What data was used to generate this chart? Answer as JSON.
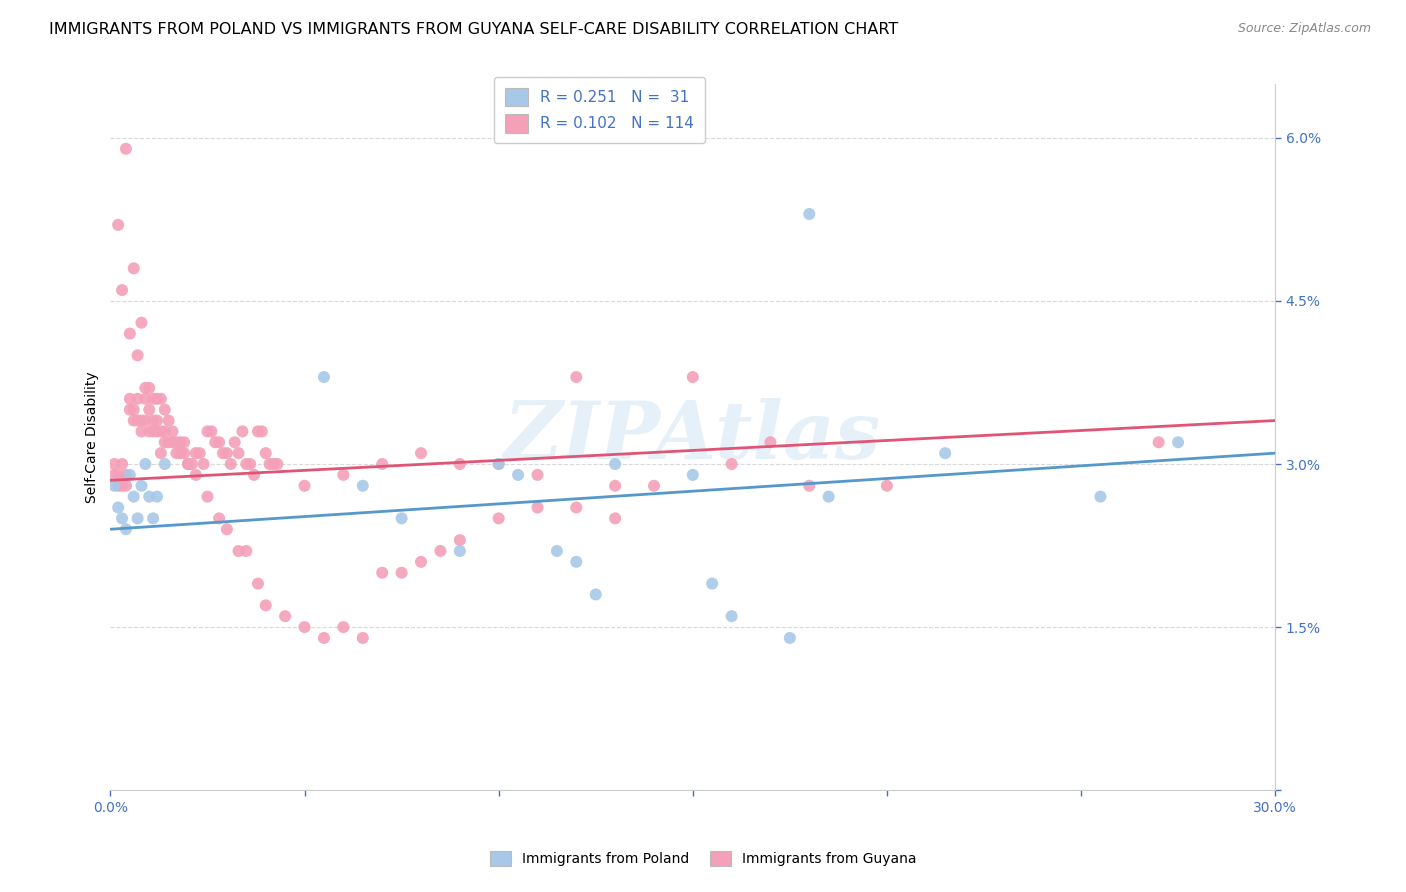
{
  "title": "IMMIGRANTS FROM POLAND VS IMMIGRANTS FROM GUYANA SELF-CARE DISABILITY CORRELATION CHART",
  "source": "Source: ZipAtlas.com",
  "ylabel": "Self-Care Disability",
  "watermark": "ZIPAtlas",
  "legend_poland_R": "R = 0.251",
  "legend_poland_N": "N =  31",
  "legend_guyana_R": "R = 0.102",
  "legend_guyana_N": "N = 114",
  "xlim": [
    0.0,
    0.3
  ],
  "ylim": [
    0.0,
    0.065
  ],
  "yticks": [
    0.0,
    0.015,
    0.03,
    0.045,
    0.06
  ],
  "ytick_labels": [
    "",
    "1.5%",
    "3.0%",
    "4.5%",
    "6.0%"
  ],
  "xticks": [
    0.0,
    0.05,
    0.1,
    0.15,
    0.2,
    0.25,
    0.3
  ],
  "xtick_labels": [
    "0.0%",
    "",
    "",
    "",
    "",
    "",
    "30.0%"
  ],
  "color_poland": "#a8c8e8",
  "color_guyana": "#f4a0b8",
  "color_trend_poland": "#5599cc",
  "color_trend_guyana": "#e05575",
  "background_color": "#ffffff",
  "grid_color": "#d0d0d0",
  "axis_color": "#4472c4",
  "title_fontsize": 11.5,
  "axis_label_fontsize": 10,
  "tick_fontsize": 10,
  "legend_fontsize": 11,
  "poland_x": [
    0.001,
    0.002,
    0.003,
    0.004,
    0.005,
    0.006,
    0.007,
    0.008,
    0.009,
    0.01,
    0.011,
    0.012,
    0.014,
    0.055,
    0.065,
    0.075,
    0.09,
    0.1,
    0.105,
    0.115,
    0.12,
    0.125,
    0.13,
    0.15,
    0.155,
    0.16,
    0.175,
    0.185,
    0.215,
    0.255,
    0.275
  ],
  "poland_y": [
    0.028,
    0.026,
    0.025,
    0.024,
    0.029,
    0.027,
    0.025,
    0.028,
    0.03,
    0.027,
    0.025,
    0.027,
    0.03,
    0.038,
    0.028,
    0.025,
    0.022,
    0.03,
    0.029,
    0.022,
    0.021,
    0.018,
    0.03,
    0.029,
    0.019,
    0.016,
    0.014,
    0.027,
    0.031,
    0.027,
    0.032
  ],
  "guyana_x": [
    0.004,
    0.006,
    0.008,
    0.01,
    0.012,
    0.014,
    0.002,
    0.003,
    0.005,
    0.007,
    0.009,
    0.011,
    0.013,
    0.015,
    0.016,
    0.017,
    0.018,
    0.019,
    0.02,
    0.021,
    0.022,
    0.023,
    0.024,
    0.025,
    0.026,
    0.027,
    0.028,
    0.029,
    0.03,
    0.031,
    0.032,
    0.033,
    0.034,
    0.035,
    0.036,
    0.037,
    0.038,
    0.039,
    0.04,
    0.041,
    0.042,
    0.043,
    0.001,
    0.001,
    0.002,
    0.002,
    0.003,
    0.003,
    0.004,
    0.004,
    0.005,
    0.005,
    0.006,
    0.006,
    0.007,
    0.007,
    0.008,
    0.008,
    0.009,
    0.009,
    0.01,
    0.01,
    0.011,
    0.011,
    0.012,
    0.012,
    0.013,
    0.013,
    0.014,
    0.014,
    0.015,
    0.016,
    0.017,
    0.018,
    0.019,
    0.02,
    0.022,
    0.025,
    0.028,
    0.03,
    0.033,
    0.035,
    0.038,
    0.04,
    0.045,
    0.05,
    0.055,
    0.06,
    0.065,
    0.07,
    0.075,
    0.08,
    0.085,
    0.09,
    0.1,
    0.11,
    0.12,
    0.13,
    0.18,
    0.2,
    0.05,
    0.06,
    0.07,
    0.08,
    0.09,
    0.1,
    0.11,
    0.12,
    0.13,
    0.14,
    0.15,
    0.16,
    0.17,
    0.27
  ],
  "guyana_y": [
    0.059,
    0.048,
    0.043,
    0.037,
    0.036,
    0.035,
    0.052,
    0.046,
    0.042,
    0.04,
    0.037,
    0.036,
    0.036,
    0.034,
    0.033,
    0.032,
    0.032,
    0.031,
    0.03,
    0.03,
    0.031,
    0.031,
    0.03,
    0.033,
    0.033,
    0.032,
    0.032,
    0.031,
    0.031,
    0.03,
    0.032,
    0.031,
    0.033,
    0.03,
    0.03,
    0.029,
    0.033,
    0.033,
    0.031,
    0.03,
    0.03,
    0.03,
    0.029,
    0.03,
    0.029,
    0.028,
    0.03,
    0.028,
    0.029,
    0.028,
    0.036,
    0.035,
    0.035,
    0.034,
    0.036,
    0.034,
    0.034,
    0.033,
    0.036,
    0.034,
    0.035,
    0.033,
    0.034,
    0.033,
    0.034,
    0.033,
    0.033,
    0.031,
    0.033,
    0.032,
    0.032,
    0.032,
    0.031,
    0.031,
    0.032,
    0.03,
    0.029,
    0.027,
    0.025,
    0.024,
    0.022,
    0.022,
    0.019,
    0.017,
    0.016,
    0.015,
    0.014,
    0.015,
    0.014,
    0.02,
    0.02,
    0.021,
    0.022,
    0.023,
    0.025,
    0.026,
    0.026,
    0.025,
    0.028,
    0.028,
    0.028,
    0.029,
    0.03,
    0.031,
    0.03,
    0.03,
    0.029,
    0.038,
    0.028,
    0.028,
    0.038,
    0.03,
    0.032,
    0.032
  ]
}
